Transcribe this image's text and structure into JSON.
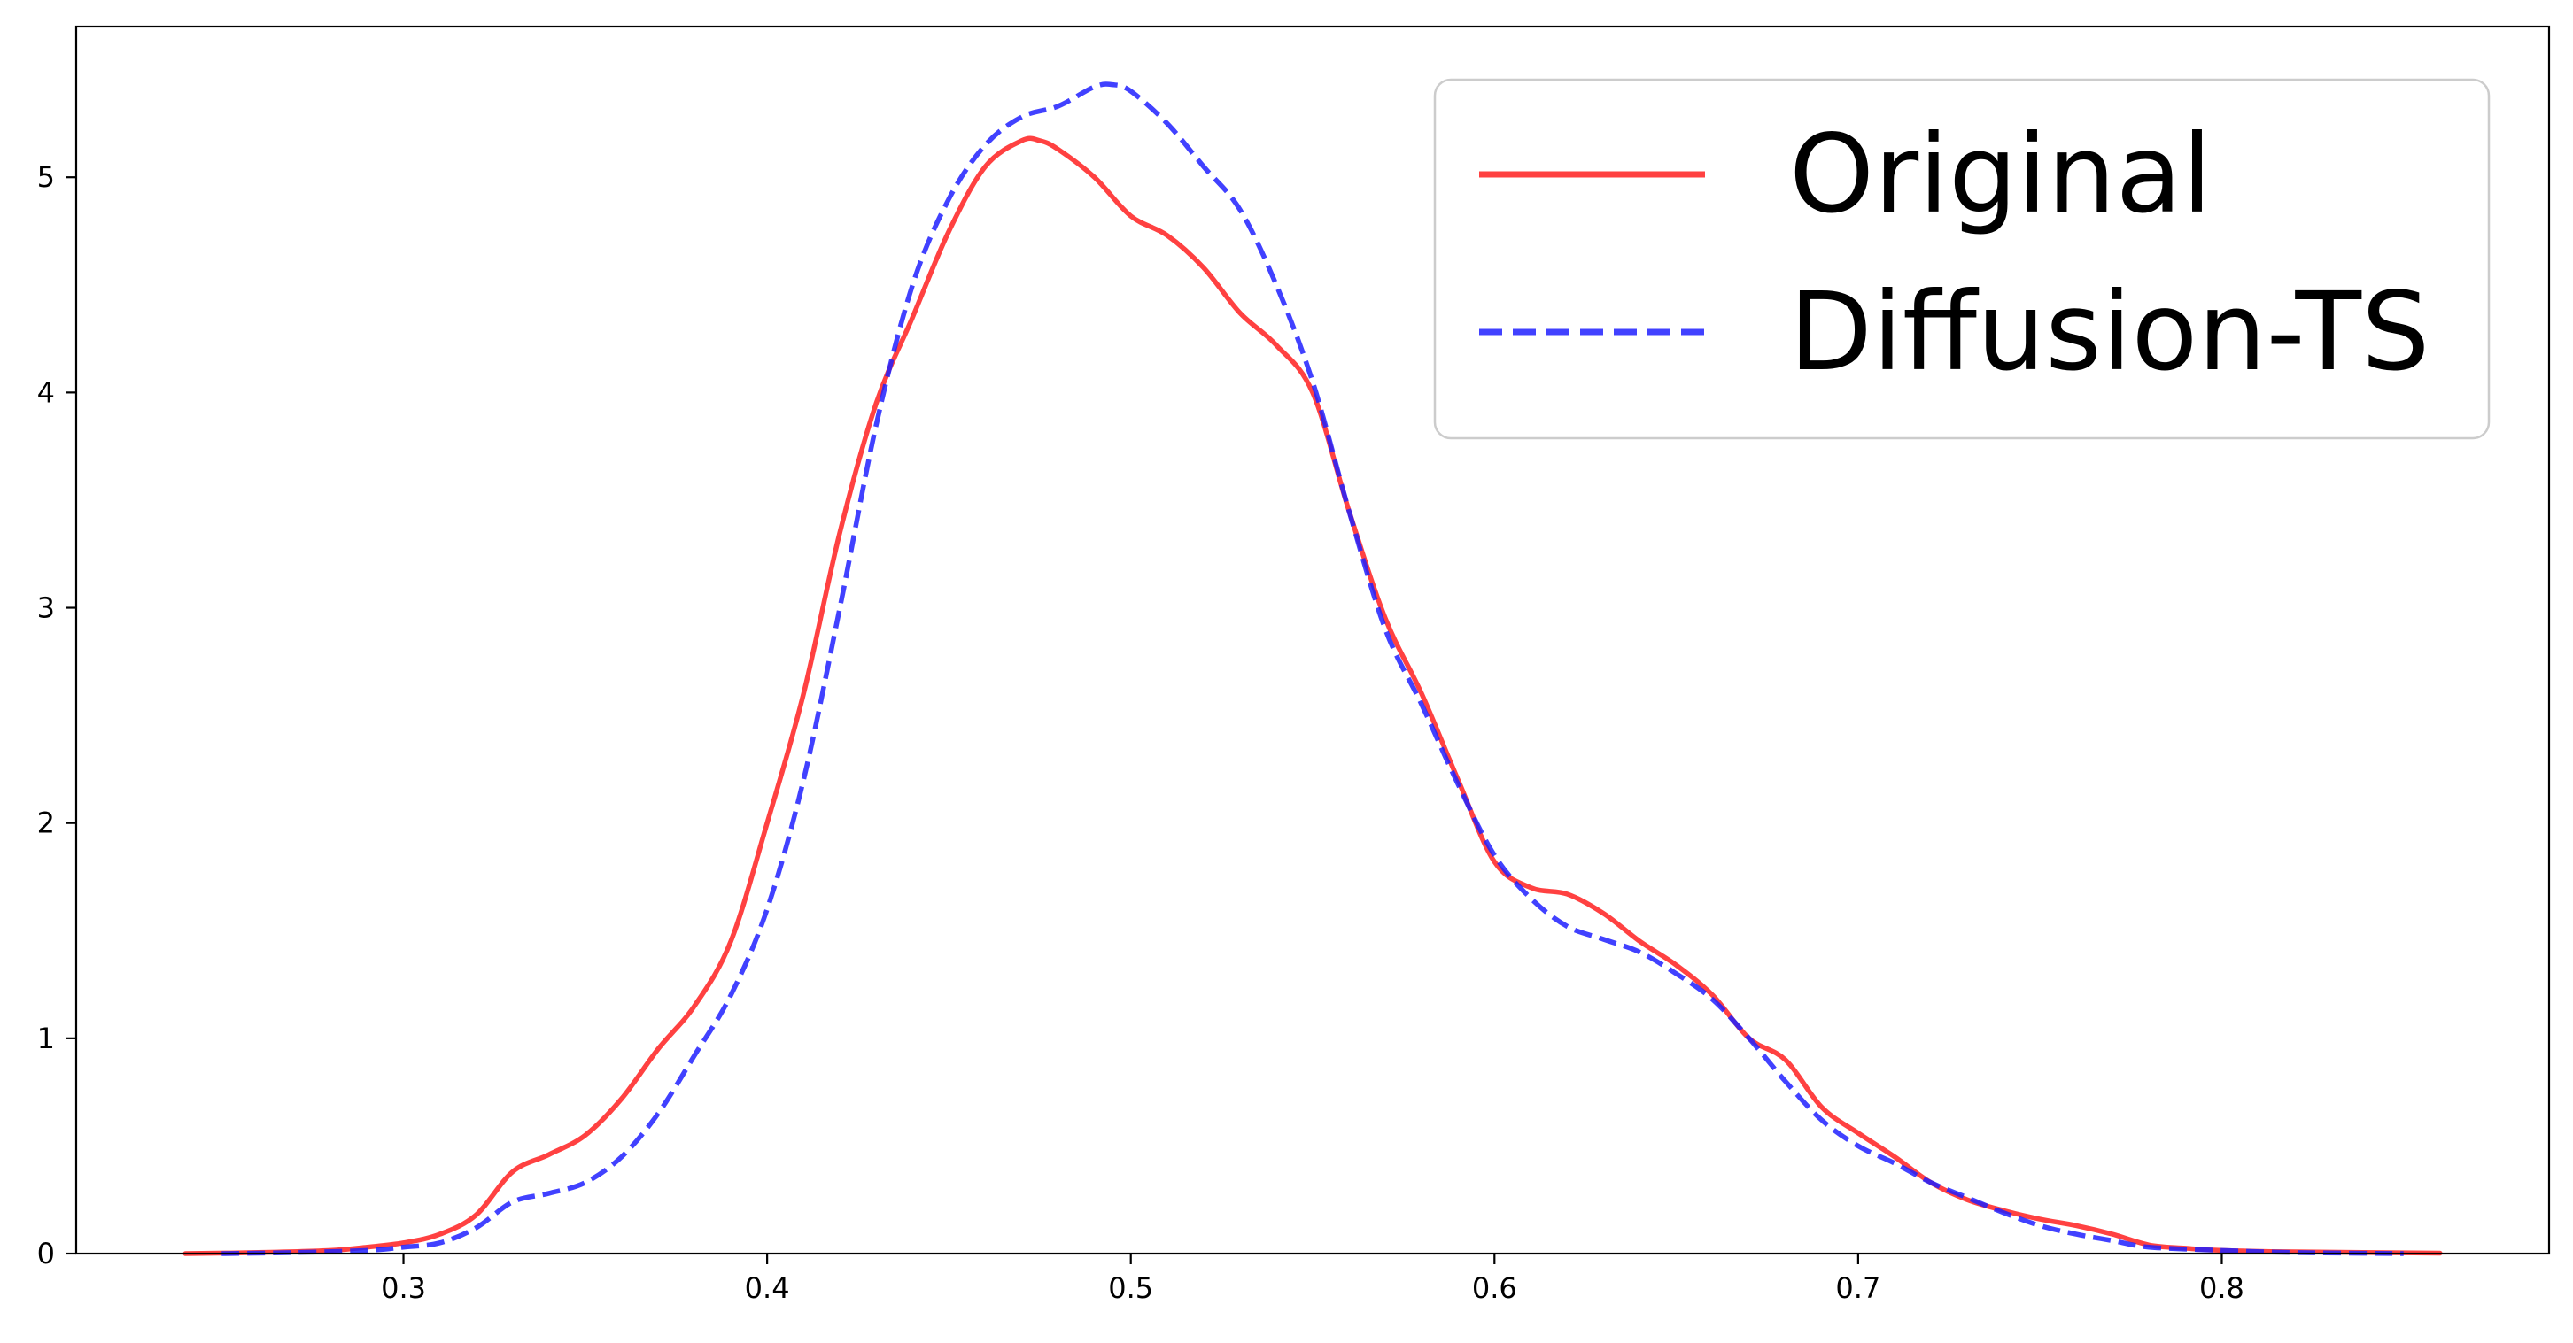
{
  "chart_data": {
    "type": "line",
    "title": "",
    "xlabel": "",
    "ylabel": "",
    "xlim": [
      0.21,
      0.89
    ],
    "ylim": [
      0,
      5.7
    ],
    "xticks": [
      0.3,
      0.4,
      0.5,
      0.6,
      0.7,
      0.8
    ],
    "xtick_labels": [
      "0.3",
      "0.4",
      "0.5",
      "0.6",
      "0.7",
      "0.8"
    ],
    "yticks": [
      0,
      1,
      2,
      3,
      4,
      5
    ],
    "ytick_labels": [
      "0",
      "1",
      "2",
      "3",
      "4",
      "5"
    ],
    "grid": false,
    "legend_position": "top-right",
    "series": [
      {
        "name": "Original",
        "color": "#ff2020",
        "style": "solid",
        "x": [
          0.24,
          0.26,
          0.28,
          0.29,
          0.3,
          0.31,
          0.32,
          0.33,
          0.34,
          0.35,
          0.36,
          0.37,
          0.38,
          0.39,
          0.4,
          0.41,
          0.42,
          0.43,
          0.44,
          0.45,
          0.46,
          0.47,
          0.475,
          0.48,
          0.49,
          0.5,
          0.51,
          0.52,
          0.53,
          0.54,
          0.55,
          0.56,
          0.57,
          0.58,
          0.59,
          0.6,
          0.61,
          0.62,
          0.63,
          0.64,
          0.65,
          0.66,
          0.67,
          0.68,
          0.69,
          0.7,
          0.71,
          0.72,
          0.73,
          0.74,
          0.75,
          0.76,
          0.77,
          0.78,
          0.79,
          0.8,
          0.82,
          0.86
        ],
        "y": [
          0.0,
          0.005,
          0.015,
          0.03,
          0.05,
          0.09,
          0.18,
          0.38,
          0.46,
          0.55,
          0.72,
          0.95,
          1.15,
          1.45,
          2.0,
          2.6,
          3.35,
          3.95,
          4.35,
          4.75,
          5.05,
          5.17,
          5.17,
          5.13,
          5.0,
          4.82,
          4.73,
          4.58,
          4.37,
          4.22,
          4.0,
          3.45,
          2.95,
          2.6,
          2.2,
          1.82,
          1.7,
          1.67,
          1.58,
          1.45,
          1.34,
          1.2,
          1.0,
          0.9,
          0.68,
          0.56,
          0.45,
          0.33,
          0.25,
          0.2,
          0.16,
          0.13,
          0.09,
          0.04,
          0.025,
          0.015,
          0.008,
          0.002
        ]
      },
      {
        "name": "Diffusion-TS",
        "color": "#2020ff",
        "style": "dashed",
        "x": [
          0.25,
          0.27,
          0.29,
          0.3,
          0.31,
          0.32,
          0.33,
          0.34,
          0.35,
          0.36,
          0.37,
          0.38,
          0.39,
          0.4,
          0.41,
          0.42,
          0.43,
          0.44,
          0.45,
          0.46,
          0.47,
          0.48,
          0.49,
          0.495,
          0.5,
          0.51,
          0.52,
          0.53,
          0.54,
          0.55,
          0.56,
          0.57,
          0.58,
          0.59,
          0.6,
          0.61,
          0.62,
          0.63,
          0.64,
          0.65,
          0.66,
          0.67,
          0.68,
          0.69,
          0.7,
          0.71,
          0.72,
          0.73,
          0.74,
          0.75,
          0.76,
          0.77,
          0.78,
          0.8,
          0.82,
          0.85
        ],
        "y": [
          0.0,
          0.005,
          0.015,
          0.03,
          0.05,
          0.12,
          0.24,
          0.28,
          0.33,
          0.45,
          0.65,
          0.92,
          1.2,
          1.6,
          2.2,
          3.0,
          3.85,
          4.5,
          4.9,
          5.15,
          5.28,
          5.33,
          5.42,
          5.43,
          5.4,
          5.25,
          5.05,
          4.85,
          4.5,
          4.05,
          3.45,
          2.9,
          2.55,
          2.18,
          1.85,
          1.65,
          1.52,
          1.46,
          1.4,
          1.3,
          1.18,
          1.0,
          0.8,
          0.62,
          0.5,
          0.42,
          0.33,
          0.26,
          0.19,
          0.13,
          0.09,
          0.06,
          0.03,
          0.015,
          0.005,
          0.0
        ]
      }
    ]
  }
}
